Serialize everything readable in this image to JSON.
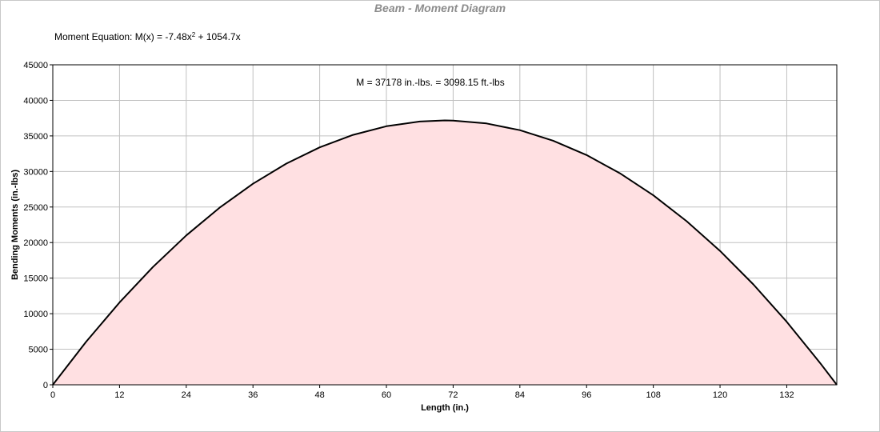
{
  "chart_data": {
    "type": "area",
    "title": "Beam - Moment Diagram",
    "equation": {
      "prefix": "Moment Equation:  M(x) = -7.48x",
      "exponent": "2",
      "suffix": " + 1054.7x"
    },
    "annotation": "M = 37178 in.-lbs. = 3098.15 ft.-lbs",
    "xlabel": "Length (in.)",
    "ylabel": "Bending Moments (in.-lbs)",
    "xlim": [
      0,
      141
    ],
    "ylim": [
      0,
      45000
    ],
    "xticks": [
      "0",
      "12",
      "24",
      "36",
      "48",
      "60",
      "72",
      "84",
      "96",
      "108",
      "120",
      "132"
    ],
    "yticks": [
      "0",
      "5000",
      "10000",
      "15000",
      "20000",
      "25000",
      "30000",
      "35000",
      "40000",
      "45000"
    ],
    "grid": true,
    "series": [
      {
        "x": [
          0,
          6,
          12,
          18,
          24,
          30,
          36,
          42,
          48,
          54,
          60,
          66,
          70.5,
          72,
          78,
          84,
          90,
          96,
          102,
          108,
          114,
          120,
          126,
          132,
          138,
          141
        ],
        "values": [
          0,
          6059,
          11579,
          16560,
          21005,
          24909,
          28276,
          31104,
          33393,
          35144,
          36355,
          37027,
          37178,
          37161,
          36755,
          35811,
          34328,
          32307,
          29746,
          26646,
          23008,
          18832,
          14116,
          8862,
          3068,
          0
        ]
      }
    ],
    "colors": {
      "fill": "#ffe0e2",
      "line": "#000000",
      "grid": "#c0c0c0",
      "title": "#8c8c8c"
    }
  }
}
